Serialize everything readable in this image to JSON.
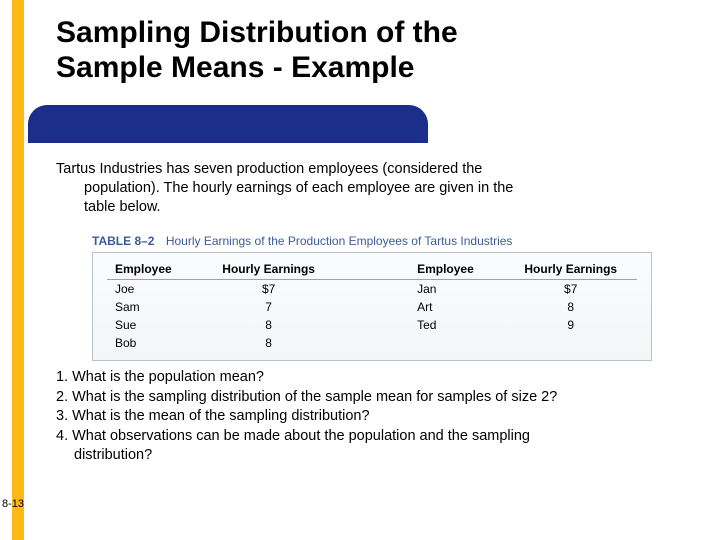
{
  "title_line1": "Sampling Distribution of the",
  "title_line2": "Sample Means - Example",
  "intro_line1": "Tartus Industries has seven production employees (considered the",
  "intro_line2": "population). The hourly earnings of each employee are given in the",
  "intro_line3": "table below.",
  "table": {
    "caption_label": "TABLE 8–2",
    "caption_text": "Hourly Earnings of the Production Employees of Tartus Industries",
    "header_employee": "Employee",
    "header_earnings": "Hourly Earnings",
    "left_rows": [
      {
        "name": "Joe",
        "earn": "$7"
      },
      {
        "name": "Sam",
        "earn": "7"
      },
      {
        "name": "Sue",
        "earn": "8"
      },
      {
        "name": "Bob",
        "earn": "8"
      }
    ],
    "right_rows": [
      {
        "name": "Jan",
        "earn": "$7"
      },
      {
        "name": "Art",
        "earn": "8"
      },
      {
        "name": "Ted",
        "earn": "9"
      },
      {
        "name": "",
        "earn": ""
      }
    ]
  },
  "q1": "1. What is the population mean?",
  "q2": "2. What is the sampling distribution of the sample mean for samples of size 2?",
  "q3": "3. What is the mean of the sampling distribution?",
  "q4a": "4. What observations can be made about the population and the sampling",
  "q4b": "distribution?",
  "page_number": "8-13",
  "colors": {
    "accent_yellow": "#fdb813",
    "blue_bar": "#1a2e8a",
    "caption_blue": "#3b5a9a"
  }
}
